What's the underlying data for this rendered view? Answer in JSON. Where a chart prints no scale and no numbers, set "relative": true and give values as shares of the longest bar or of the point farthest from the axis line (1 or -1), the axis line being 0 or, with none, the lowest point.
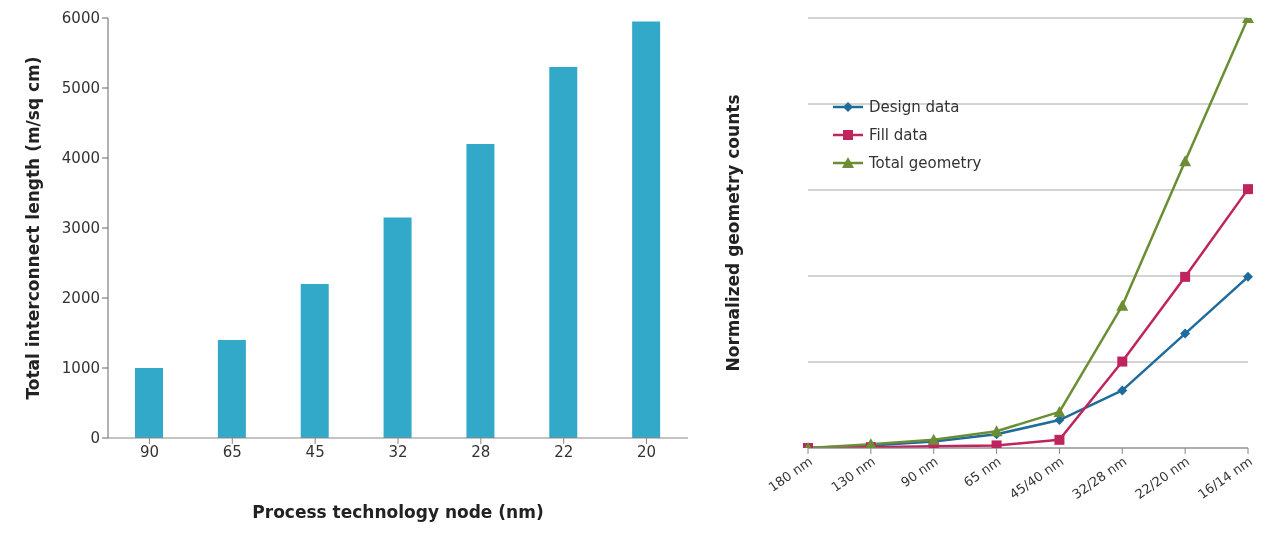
{
  "chart_data": [
    {
      "type": "bar",
      "xlabel": "Process technology node (nm)",
      "ylabel": "Total interconnect length (m/sq cm)",
      "categories": [
        "90",
        "65",
        "45",
        "32",
        "28",
        "22",
        "20"
      ],
      "values": [
        1000,
        1400,
        2200,
        3150,
        4200,
        5300,
        5950
      ],
      "color": "#33a9c9",
      "ylim": [
        0,
        6000
      ],
      "yticks": [
        0,
        1000,
        2000,
        3000,
        4000,
        5000,
        6000
      ],
      "grid": false,
      "legend": false
    },
    {
      "type": "line",
      "ylabel": "Normalized geometry counts",
      "categories": [
        "180 nm",
        "130 nm",
        "90 nm",
        "65 nm",
        "45/40 nm",
        "32/28 nm",
        "22/20 nm",
        "16/14 nm"
      ],
      "relative": true,
      "grid": "y",
      "legend": "top left",
      "tick_labels": "x",
      "series": [
        {
          "name": "Design data",
          "color": "#1f6c9c",
          "marker": "diamond",
          "values": [
            0,
            0.006,
            0.015,
            0.032,
            0.065,
            0.134,
            0.266,
            0.398
          ]
        },
        {
          "name": "Fill data",
          "color": "#c0245e",
          "marker": "square",
          "values": [
            0,
            0.002,
            0.004,
            0.006,
            0.019,
            0.201,
            0.398,
            0.602
          ]
        },
        {
          "name": "Total geometry",
          "color": "#6b8e35",
          "marker": "triangle",
          "values": [
            0,
            0.009,
            0.019,
            0.039,
            0.084,
            0.331,
            0.667,
            1
          ]
        }
      ]
    }
  ]
}
